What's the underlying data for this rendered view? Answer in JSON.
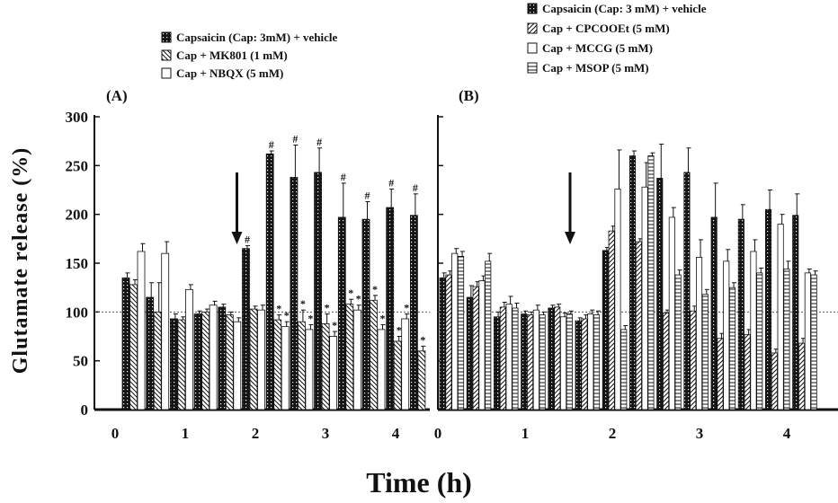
{
  "colors": {
    "ink": "#111111",
    "star": "#2f6fb8",
    "bg": "#ffffff"
  },
  "y_axis": {
    "label": "Glutamate release (%)",
    "ticks": [
      "0",
      "50",
      "100",
      "150",
      "200",
      "250",
      "300"
    ]
  },
  "x_axis": {
    "label": "Time (h)"
  },
  "panels": [
    {
      "label": "(A)",
      "x_ticks": [
        "0",
        "1",
        "2",
        "3",
        "4"
      ],
      "legend": [
        {
          "text": "Capsaicin (Cap: 3mM) + vehicle",
          "pattern": "dots-dark"
        },
        {
          "text": "Cap + MK801 (1 mM)",
          "pattern": "hatch-back"
        },
        {
          "text": "Cap + NBQX (5 mM)",
          "pattern": "open"
        }
      ]
    },
    {
      "label": "(B)",
      "x_ticks": [
        "0",
        "1",
        "2",
        "3",
        "4"
      ],
      "legend": [
        {
          "text": "Capsaicin (Cap: 3 mM) + vehicle",
          "pattern": "dots-dark"
        },
        {
          "text": "Cap + CPCOOEt (5 mM)",
          "pattern": "hatch-fwd"
        },
        {
          "text": "Cap + MCCG (5 mM)",
          "pattern": "open"
        },
        {
          "text": "Cap + MSOP (5 mM)",
          "pattern": "hlines"
        }
      ]
    }
  ],
  "chart_data": [
    {
      "type": "bar",
      "panel": "(A)",
      "xlabel": "Time (h)",
      "ylabel": "Glutamate release (%)",
      "ylim": [
        0,
        300
      ],
      "baseline_dashed": 100,
      "stimulus_arrow_at_group": 5,
      "series": [
        {
          "name": "Capsaicin (Cap: 3mM) + vehicle",
          "pattern": "dots-dark",
          "values": [
            135,
            115,
            93,
            98,
            105,
            165,
            262,
            238,
            243,
            197,
            195,
            207,
            199
          ],
          "errors": [
            5,
            15,
            5,
            3,
            3,
            3,
            3,
            33,
            25,
            35,
            18,
            19,
            22
          ],
          "sig": [
            "",
            "",
            "",
            "",
            "",
            "#",
            "#",
            "#",
            "#",
            "#",
            "#",
            "#",
            "#"
          ]
        },
        {
          "name": "Cap + MK801 (1 mM)",
          "pattern": "hatch-back",
          "values": [
            128,
            100,
            92,
            100,
            97,
            103,
            92,
            90,
            88,
            108,
            112,
            70,
            60
          ],
          "errors": [
            5,
            30,
            3,
            3,
            3,
            3,
            5,
            12,
            10,
            5,
            5,
            5,
            5
          ],
          "sig": [
            "",
            "",
            "",
            "",
            "",
            "",
            "*",
            "*",
            "*",
            "*",
            "*",
            "*",
            "*"
          ]
        },
        {
          "name": "Cap + NBQX (5 mM)",
          "pattern": "open",
          "values": [
            162,
            160,
            123,
            107,
            90,
            102,
            85,
            82,
            75,
            102,
            82,
            93,
            78
          ],
          "errors": [
            8,
            12,
            5,
            4,
            4,
            5,
            5,
            5,
            5,
            5,
            5,
            5,
            5
          ],
          "sig": [
            "",
            "",
            "",
            "",
            "",
            "",
            "*",
            "*",
            "*",
            "*",
            "*",
            "*",
            "*"
          ]
        }
      ]
    },
    {
      "type": "bar",
      "panel": "(B)",
      "xlabel": "Time (h)",
      "ylabel": "Glutamate release (%)",
      "ylim": [
        0,
        300
      ],
      "baseline_dashed": 100,
      "stimulus_arrow_at_group": 5,
      "series": [
        {
          "name": "Capsaicin (Cap: 3 mM) + vehicle",
          "pattern": "dots-dark",
          "values": [
            135,
            115,
            95,
            98,
            104,
            91,
            163,
            260,
            237,
            243,
            197,
            195,
            205,
            199
          ],
          "errors": [
            5,
            12,
            5,
            3,
            3,
            3,
            3,
            5,
            35,
            25,
            35,
            15,
            20,
            22
          ],
          "sig": [
            "",
            "",
            "",
            "",
            "",
            "",
            "",
            "",
            "",
            "",
            "",
            "",
            "",
            ""
          ]
        },
        {
          "name": "Cap + CPCOOEt (5 mM)",
          "pattern": "hatch-fwd",
          "values": [
            138,
            126,
            105,
            97,
            105,
            93,
            183,
            172,
            99,
            101,
            73,
            77,
            58,
            68
          ],
          "errors": [
            4,
            5,
            5,
            3,
            3,
            4,
            5,
            3,
            3,
            5,
            5,
            5,
            4,
            5
          ],
          "sig": [
            "",
            "",
            "",
            "",
            "",
            "",
            "",
            "",
            "",
            "",
            "",
            "",
            "",
            ""
          ]
        },
        {
          "name": "Cap + MCCG (5 mM)",
          "pattern": "open",
          "values": [
            160,
            132,
            108,
            102,
            95,
            98,
            226,
            228,
            197,
            156,
            152,
            162,
            190,
            140
          ],
          "errors": [
            5,
            5,
            8,
            5,
            4,
            4,
            40,
            25,
            10,
            18,
            12,
            12,
            10,
            4
          ],
          "sig": [
            "",
            "",
            "",
            "",
            "",
            "",
            "",
            "",
            "",
            "",
            "",
            "",
            "",
            ""
          ]
        },
        {
          "name": "Cap + MSOP (5 mM)",
          "pattern": "hlines",
          "values": [
            157,
            152,
            104,
            97,
            98,
            97,
            82,
            260,
            138,
            118,
            125,
            140,
            144,
            138
          ],
          "errors": [
            5,
            8,
            5,
            3,
            3,
            4,
            4,
            3,
            5,
            5,
            5,
            5,
            8,
            4
          ],
          "sig": [
            "",
            "",
            "",
            "",
            "",
            "",
            "",
            "",
            "",
            "",
            "",
            "",
            "",
            ""
          ]
        }
      ]
    }
  ]
}
